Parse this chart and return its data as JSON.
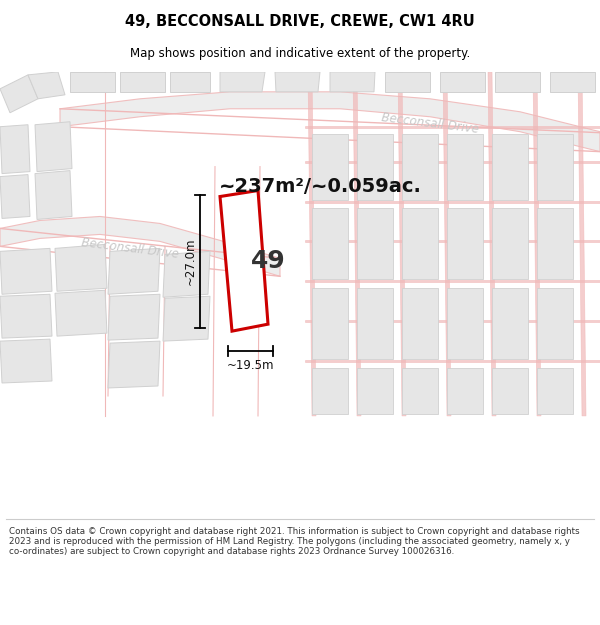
{
  "title_line1": "49, BECCONSALL DRIVE, CREWE, CW1 4RU",
  "title_line2": "Map shows position and indicative extent of the property.",
  "area_label": "~237m²/~0.059ac.",
  "number_label": "49",
  "dim_vertical": "~27.0m",
  "dim_horizontal": "~19.5m",
  "street_label_lower": "Becconsall Drive",
  "street_label_upper": "Becconsall Drive",
  "footer_text": "Contains OS data © Crown copyright and database right 2021. This information is subject to Crown copyright and database rights 2023 and is reproduced with the permission of HM Land Registry. The polygons (including the associated geometry, namely x, y co-ordinates) are subject to Crown copyright and database rights 2023 Ordnance Survey 100026316.",
  "map_bg": "#f2f2f2",
  "road_salmon": "#f0b8b8",
  "plot_line_color": "#cc0000",
  "bld_fill": "#e6e6e6",
  "bld_stroke": "#d0d0d0",
  "road_fill": "#ebebeb",
  "white": "#ffffff"
}
